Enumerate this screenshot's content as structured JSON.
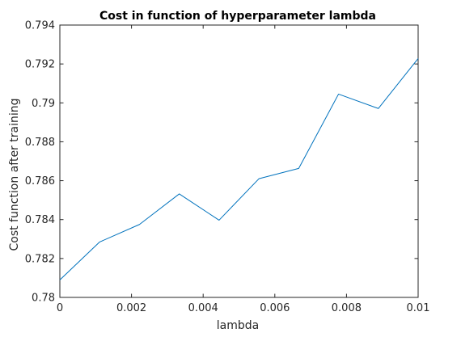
{
  "chart_data": {
    "type": "line",
    "title": "Cost in function of hyperparameter lambda",
    "xlabel": "lambda",
    "ylabel": "Cost function after training",
    "xlim": [
      0,
      0.01
    ],
    "ylim": [
      0.78,
      0.794
    ],
    "x_ticks": [
      0,
      0.002,
      0.004,
      0.006,
      0.008,
      0.01
    ],
    "x_tick_labels": [
      "0",
      "0.002",
      "0.004",
      "0.006",
      "0.008",
      "0.01"
    ],
    "y_ticks": [
      0.78,
      0.782,
      0.784,
      0.786,
      0.788,
      0.79,
      0.792,
      0.794
    ],
    "y_tick_labels": [
      "0.78",
      "0.782",
      "0.784",
      "0.786",
      "0.788",
      "0.79",
      "0.792",
      "0.794"
    ],
    "grid": false,
    "series": [
      {
        "color": "#0072bd",
        "x": [
          0,
          0.001111,
          0.002222,
          0.003333,
          0.004444,
          0.005556,
          0.006667,
          0.007778,
          0.008889,
          0.01
        ],
        "y": [
          0.7809,
          0.78285,
          0.78375,
          0.78532,
          0.78397,
          0.7861,
          0.78663,
          0.79045,
          0.78971,
          0.79228
        ]
      }
    ]
  }
}
